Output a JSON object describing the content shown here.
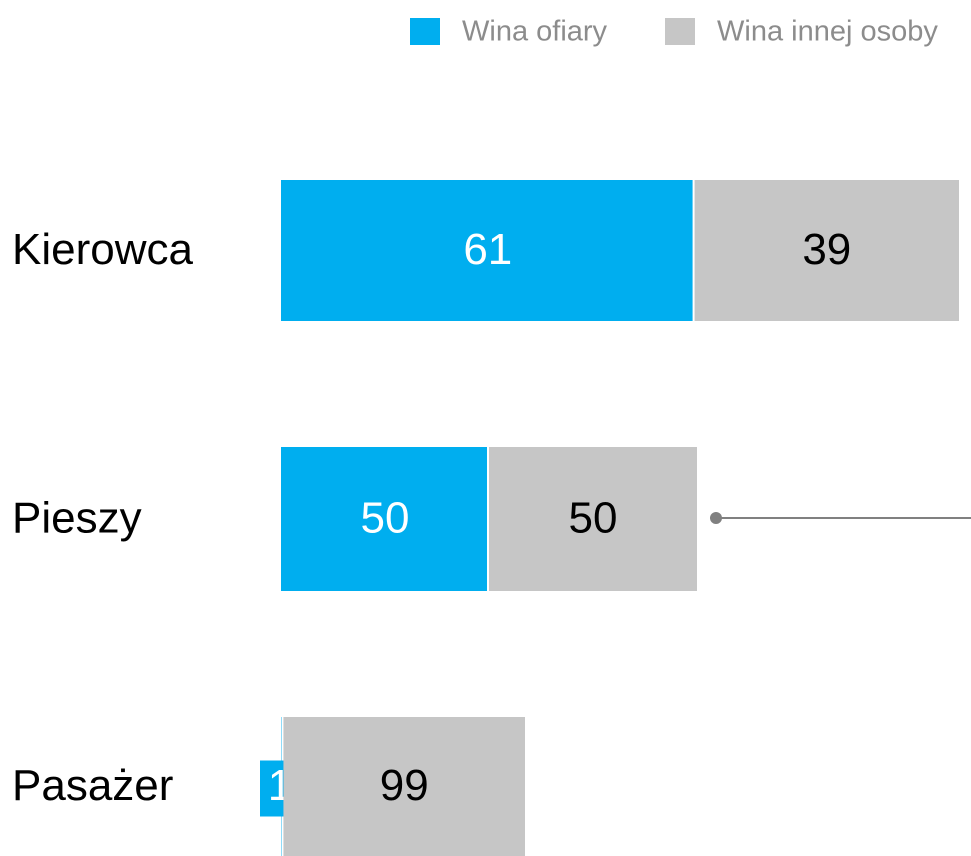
{
  "chart_data": {
    "type": "bar",
    "orientation": "horizontal",
    "stacked": true,
    "categories": [
      "Kierowca",
      "Pieszy",
      "Pasażer"
    ],
    "series": [
      {
        "name": "Wina ofiary",
        "color": "#00aeef",
        "values": [
          61,
          50,
          1
        ]
      },
      {
        "name": "Wina innej osoby",
        "color": "#c6c6c6",
        "values": [
          39,
          50,
          99
        ]
      }
    ],
    "legend": "top-right"
  }
}
